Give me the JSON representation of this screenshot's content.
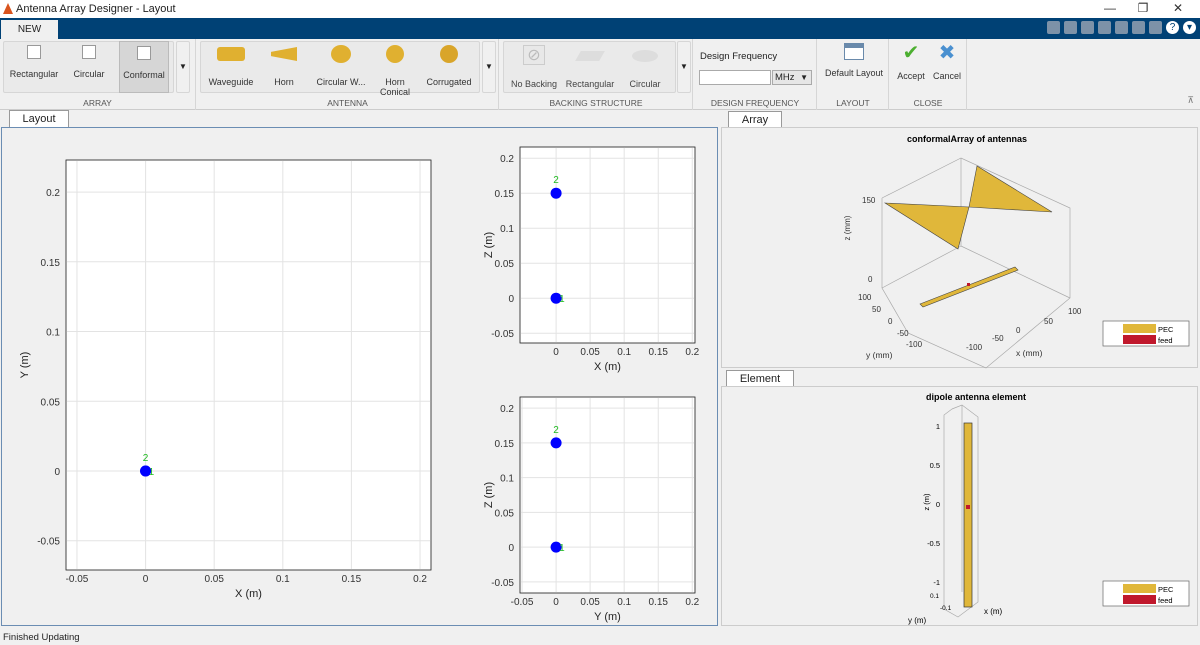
{
  "window": {
    "title": "Antenna Array Designer - Layout",
    "controls": [
      "minimize",
      "restore",
      "close"
    ]
  },
  "toolstrip": {
    "tab": "NEW"
  },
  "ribbon": {
    "array": {
      "label": "ARRAY",
      "items": [
        {
          "label": "Rectangular"
        },
        {
          "label": "Circular"
        },
        {
          "label": "Conformal",
          "selected": true
        }
      ]
    },
    "antenna": {
      "label": "ANTENNA",
      "items": [
        {
          "label": "Waveguide"
        },
        {
          "label": "Horn"
        },
        {
          "label": "Circular W..."
        },
        {
          "label": "Horn Conical"
        },
        {
          "label": "Corrugated"
        }
      ]
    },
    "backing": {
      "label": "BACKING STRUCTURE",
      "items": [
        {
          "label": "No Backing"
        },
        {
          "label": "Rectangular"
        },
        {
          "label": "Circular"
        }
      ]
    },
    "frequency": {
      "label": "DESIGN FREQUENCY",
      "title": "Design Frequency",
      "value": "",
      "unit": "MHz"
    },
    "layout": {
      "label": "LAYOUT",
      "button": "Default Layout"
    },
    "close": {
      "label": "CLOSE",
      "accept": "Accept",
      "cancel": "Cancel"
    }
  },
  "layout_panel": {
    "tab": "Layout"
  },
  "array_panel": {
    "tab": "Array",
    "title": "conformalArray of antennas",
    "xlabel": "x (mm)",
    "ylabel": "y (mm)",
    "zlabel": "z (mm)",
    "ticks_z": [
      "150",
      "0"
    ],
    "ticks_x": [
      "100",
      "50",
      "0",
      "-50",
      "-100"
    ],
    "ticks_y": [
      "100",
      "50",
      "0",
      "-50",
      "-100"
    ],
    "legend": [
      {
        "label": "PEC",
        "color": "#e0b73a"
      },
      {
        "label": "feed",
        "color": "#c0182c"
      }
    ]
  },
  "element_panel": {
    "tab": "Element",
    "title": "dipole antenna element",
    "xlabel": "x (m)",
    "ylabel": "y (m)",
    "zlabel": "z (m)",
    "ticks_z": [
      "1",
      "0.5",
      "0",
      "-0.5",
      "-1"
    ],
    "ticks_y": [
      "0.1",
      "-0.1"
    ],
    "legend": [
      {
        "label": "PEC",
        "color": "#e0b73a"
      },
      {
        "label": "feed",
        "color": "#c0182c"
      }
    ]
  },
  "status": "Finished Updating",
  "chart_data": [
    {
      "type": "scatter",
      "xlabel": "X (m)",
      "ylabel": "Y (m)",
      "xlim": [
        -0.058,
        0.208
      ],
      "ylim": [
        -0.071,
        0.223
      ],
      "grid": true,
      "xticks": [
        -0.05,
        0,
        0.05,
        0.1,
        0.15,
        0.2
      ],
      "xticklabels": [
        "-0.05",
        "0",
        "0.05",
        "0.1",
        "0.15",
        "0.2"
      ],
      "yticks": [
        -0.05,
        0,
        0.05,
        0.1,
        0.15,
        0.2
      ],
      "yticklabels": [
        "-0.05",
        "0",
        "0.05",
        "0.1",
        "0.15",
        "0.2"
      ],
      "points": [
        {
          "x": 0,
          "y": 0,
          "label": "1"
        },
        {
          "x": 0,
          "y": 0,
          "label": "2"
        }
      ],
      "color": "#0000ff",
      "label_color": "#22bb22"
    },
    {
      "type": "scatter",
      "xlabel": "X (m)",
      "ylabel": "Z (m)",
      "xlim": [
        -0.053,
        0.204
      ],
      "ylim": [
        -0.064,
        0.216
      ],
      "grid": true,
      "xticks": [
        0,
        0.05,
        0.1,
        0.15,
        0.2
      ],
      "xticklabels": [
        "0",
        "0.05",
        "0.1",
        "0.15",
        "0.2"
      ],
      "yticks": [
        -0.05,
        0,
        0.05,
        0.1,
        0.15,
        0.2
      ],
      "yticklabels": [
        "-0.05",
        "0",
        "0.05",
        "0.1",
        "0.15",
        "0.2"
      ],
      "points": [
        {
          "x": 0,
          "y": 0,
          "label": "1"
        },
        {
          "x": 0,
          "y": 0.15,
          "label": "2"
        }
      ],
      "color": "#0000ff",
      "label_color": "#22bb22"
    },
    {
      "type": "scatter",
      "xlabel": "Y (m)",
      "ylabel": "Z (m)",
      "xlim": [
        -0.053,
        0.204
      ],
      "ylim": [
        -0.066,
        0.216
      ],
      "grid": true,
      "xticks": [
        -0.05,
        0,
        0.05,
        0.1,
        0.15,
        0.2
      ],
      "xticklabels": [
        "-0.05",
        "0",
        "0.05",
        "0.1",
        "0.15",
        "0.2"
      ],
      "yticks": [
        -0.05,
        0,
        0.05,
        0.1,
        0.15,
        0.2
      ],
      "yticklabels": [
        "-0.05",
        "0",
        "0.05",
        "0.1",
        "0.15",
        "0.2"
      ],
      "points": [
        {
          "x": 0,
          "y": 0,
          "label": "1"
        },
        {
          "x": 0,
          "y": 0.15,
          "label": "2"
        }
      ],
      "color": "#0000ff",
      "label_color": "#22bb22"
    }
  ]
}
